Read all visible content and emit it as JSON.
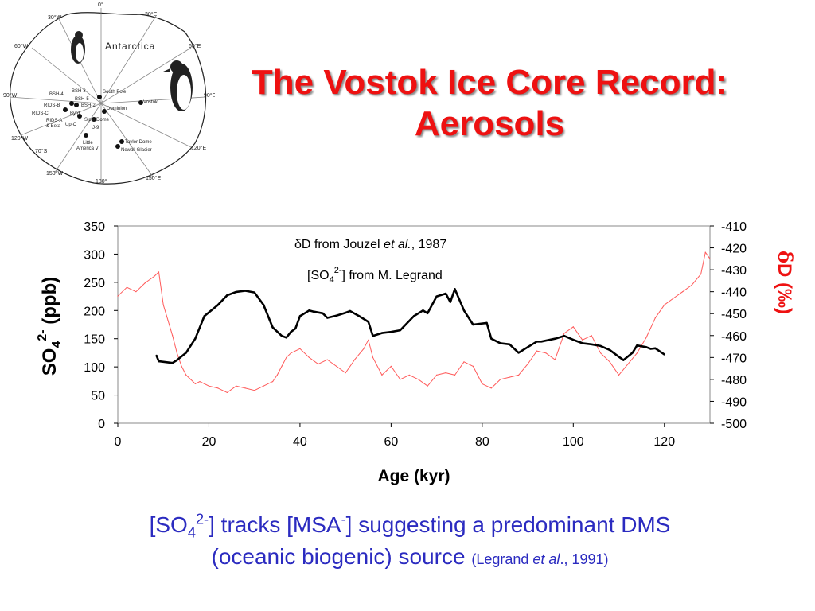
{
  "slide": {
    "title_line1": "The Vostok Ice Core Record:",
    "title_line2": "Aerosols",
    "caption": {
      "p1": "[SO",
      "sub4": "4",
      "sup2m": "2-",
      "p2": "] tracks [MSA",
      "supm": "-",
      "p3": "] suggesting a predominant DMS",
      "line2": "(oceanic biogenic) source",
      "cite_a": "(Legrand ",
      "cite_b": "et al",
      "cite_c": "., 1991)"
    }
  },
  "map": {
    "title": "Antarctica",
    "labels": {
      "lon_0": "0°",
      "lon_30e": "30°E",
      "lon_60e": "60°E",
      "lon_90e": "90°E",
      "lon_120e": "120°E",
      "lon_150e": "150°E",
      "lon_180": "180°",
      "lon_150w": "150°W",
      "lon_120w": "120°W",
      "lon_90w": "90°W",
      "lon_60w": "60°W",
      "lon_30w": "30°W",
      "lat_70s": "70°S"
    },
    "sites": {
      "bsh4": "BSH-4",
      "bsh3": "BSH-3",
      "bsh5": "BSH-5",
      "bsh2": "BSH-2",
      "ridsb": "RIDS-B",
      "ridsc": "RIDS-C",
      "byrd": "Byrd",
      "ridsa": "RIDS-A",
      "beta": "& Beta",
      "upc": "Up-C",
      "j9": "J-9",
      "siple": "Siple Dome",
      "south_pole": "South Pole",
      "dominion": "Dominion",
      "vostok": "Vostok",
      "little_america": "Little",
      "little_america2": "America V",
      "taylor": "Taylor Dome",
      "newall": "Newall Glacier"
    }
  },
  "chart_data": {
    "type": "line",
    "title": "",
    "xlabel": "Age (kyr)",
    "ylabel_left": {
      "main": "SO",
      "sub": "4",
      "sup": "2-",
      "rest": " (ppb)"
    },
    "ylabel_right": {
      "delta": "δ",
      "rest": "D (‰)"
    },
    "xlim": [
      0,
      130
    ],
    "ylim_left": [
      0,
      350
    ],
    "ylim_right": [
      -500,
      -410
    ],
    "x_ticks": [
      0,
      20,
      40,
      60,
      80,
      100,
      120
    ],
    "y_ticks_left": [
      0,
      50,
      100,
      150,
      200,
      250,
      300,
      350
    ],
    "y_ticks_right": [
      -500,
      -490,
      -480,
      -470,
      -460,
      -450,
      -440,
      -430,
      -420,
      -410
    ],
    "annotations": {
      "dd_a": "δD from Jouzel ",
      "dd_b": "et al.",
      "dd_c": ", 1987",
      "so4_a": "[SO",
      "so4_sub": "4",
      "so4_sup": "2-",
      "so4_b": "] from M. Legrand"
    },
    "series": [
      {
        "axis": "left",
        "color": "#000000",
        "x": [
          8.5,
          9,
          12,
          13,
          15,
          17,
          19,
          22,
          24,
          26,
          28,
          30,
          32,
          34,
          36,
          37,
          38,
          39,
          40,
          42,
          43,
          45,
          46,
          48,
          50,
          51,
          53,
          55,
          56,
          58,
          60,
          62,
          65,
          67,
          68,
          70,
          72,
          73,
          74,
          76,
          78,
          81,
          82,
          84,
          86,
          88,
          90,
          92,
          93,
          96,
          98,
          100,
          102,
          104,
          106,
          108,
          110,
          111,
          113,
          114,
          116,
          117,
          118,
          120
        ],
        "y": [
          120,
          110,
          107,
          112,
          125,
          150,
          190,
          210,
          227,
          233,
          235,
          232,
          210,
          170,
          155,
          152,
          162,
          168,
          190,
          200,
          198,
          195,
          187,
          191,
          196,
          199,
          190,
          180,
          155,
          160,
          162,
          165,
          190,
          200,
          195,
          225,
          230,
          215,
          238,
          200,
          175,
          178,
          150,
          142,
          140,
          125,
          135,
          145,
          145,
          150,
          155,
          148,
          142,
          140,
          137,
          130,
          118,
          112,
          125,
          138,
          135,
          132,
          133,
          122
        ]
      },
      {
        "axis": "right",
        "color": "#ff5a5a",
        "x": [
          0,
          2,
          4,
          6,
          8,
          9,
          10,
          11,
          12,
          13,
          14,
          15,
          16,
          17,
          18,
          20,
          22,
          24,
          26,
          28,
          30,
          32,
          34,
          35,
          36,
          37,
          38,
          40,
          42,
          44,
          46,
          48,
          50,
          52,
          54,
          55,
          56,
          58,
          60,
          62,
          64,
          66,
          68,
          70,
          72,
          74,
          76,
          78,
          80,
          82,
          84,
          86,
          88,
          90,
          92,
          94,
          96,
          98,
          100,
          102,
          104,
          106,
          108,
          110,
          112,
          114,
          116,
          118,
          120,
          122,
          124,
          126,
          128,
          129,
          130
        ],
        "y": [
          -442,
          -438,
          -440,
          -436,
          -433,
          -431,
          -446,
          -453,
          -460,
          -468,
          -474,
          -478,
          -480,
          -482,
          -481,
          -483,
          -484,
          -486,
          -483,
          -484,
          -485,
          -483,
          -481,
          -478,
          -474,
          -470,
          -468,
          -466,
          -470,
          -473,
          -471,
          -474,
          -477,
          -471,
          -466,
          -462,
          -470,
          -478,
          -474,
          -480,
          -478,
          -480,
          -483,
          -478,
          -477,
          -478,
          -472,
          -474,
          -482,
          -484,
          -480,
          -479,
          -478,
          -473,
          -467,
          -468,
          -471,
          -459,
          -456,
          -462,
          -460,
          -468,
          -472,
          -478,
          -473,
          -468,
          -461,
          -452,
          -446,
          -443,
          -440,
          -437,
          -432,
          -422,
          -425
        ]
      }
    ]
  }
}
